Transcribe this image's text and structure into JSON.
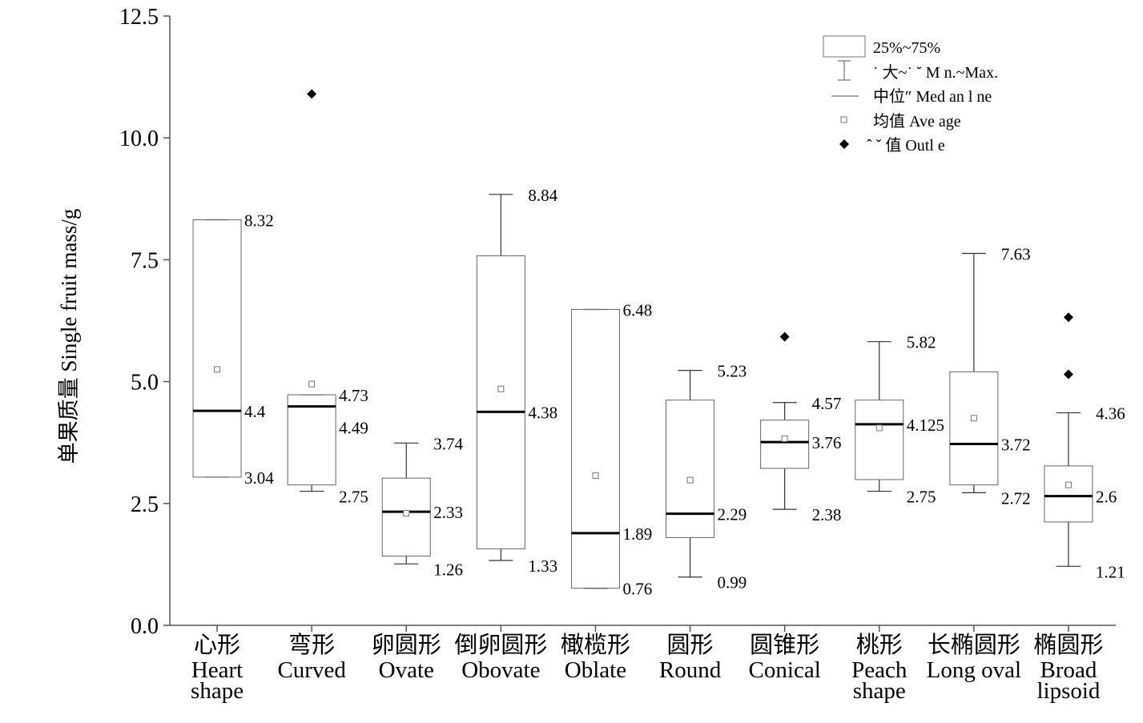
{
  "chart_data": {
    "type": "box",
    "ylabel": "单果质量 Single fruit mass/g",
    "ylim": [
      0,
      12.5
    ],
    "yticks": [
      "0.0",
      "2.5",
      "5.0",
      "7.5",
      "10.0",
      "12.5"
    ],
    "grid": false,
    "legend_position": "top-right",
    "legend": [
      "25%~75%",
      "˙ 大~˙ ˘ M n.~Max.",
      "中位″ Med an l ne",
      "均值 Ave age",
      "ˆ ˇ 值 Outl e"
    ],
    "categories": [
      {
        "cn": "心形",
        "en1": "Heart",
        "en2": "shape",
        "min": 3.04,
        "q1": 3.04,
        "median": 4.4,
        "q3": 8.32,
        "max": 8.32,
        "mean": 5.25,
        "outliers": [],
        "labels": {
          "max": "8.32",
          "median": "4.4",
          "min": "3.04"
        }
      },
      {
        "cn": "弯形",
        "en1": "Curved",
        "en2": "",
        "min": 2.75,
        "q1": 2.88,
        "median": 4.49,
        "q3": 4.73,
        "max": 4.73,
        "mean": 4.95,
        "outliers": [
          10.9
        ],
        "labels": {
          "max": "4.73",
          "median": "4.49",
          "min": "2.75"
        }
      },
      {
        "cn": "卵圆形",
        "en1": "Ovate",
        "en2": "",
        "min": 1.26,
        "q1": 1.42,
        "median": 2.33,
        "q3": 3.02,
        "max": 3.74,
        "mean": 2.3,
        "outliers": [],
        "labels": {
          "max": "3.74",
          "median": "2.33",
          "min": "1.26"
        }
      },
      {
        "cn": "倒卵圆形",
        "en1": "Obovate",
        "en2": "",
        "min": 1.33,
        "q1": 1.57,
        "median": 4.38,
        "q3": 7.58,
        "max": 8.84,
        "mean": 4.85,
        "outliers": [],
        "labels": {
          "max": "8.84",
          "median": "4.38",
          "min": "1.33"
        }
      },
      {
        "cn": "橄榄形",
        "en1": "Oblate",
        "en2": "",
        "min": 0.76,
        "q1": 0.76,
        "median": 1.89,
        "q3": 6.48,
        "max": 6.48,
        "mean": 3.07,
        "outliers": [],
        "labels": {
          "max": "6.48",
          "median": "1.89",
          "min": "0.76"
        }
      },
      {
        "cn": "圆形",
        "en1": "Round",
        "en2": "",
        "min": 0.99,
        "q1": 1.8,
        "median": 2.29,
        "q3": 4.62,
        "max": 5.23,
        "mean": 2.98,
        "outliers": [],
        "labels": {
          "max": "5.23",
          "median": "2.29",
          "min": "0.99"
        }
      },
      {
        "cn": "圆锥形",
        "en1": "Conical",
        "en2": "",
        "min": 2.38,
        "q1": 3.22,
        "median": 3.76,
        "q3": 4.21,
        "max": 4.57,
        "mean": 3.83,
        "outliers": [
          5.92
        ],
        "labels": {
          "max": "4.57",
          "median": "3.76",
          "min": "2.38"
        }
      },
      {
        "cn": "桃形",
        "en1": "Peach",
        "en2": "shape",
        "min": 2.75,
        "q1": 2.99,
        "median": 4.125,
        "q3": 4.62,
        "max": 5.82,
        "mean": 4.05,
        "outliers": [],
        "labels": {
          "max": "5.82",
          "median": "4.125",
          "min": "2.75"
        }
      },
      {
        "cn": "长椭圆形",
        "en1": "Long oval",
        "en2": "",
        "min": 2.72,
        "q1": 2.88,
        "median": 3.72,
        "q3": 5.2,
        "max": 7.63,
        "mean": 4.25,
        "outliers": [],
        "labels": {
          "max": "7.63",
          "median": "3.72",
          "min": "2.72"
        }
      },
      {
        "cn": "椭圆形",
        "en1": "Broad",
        "en2": "lipsoid",
        "min": 1.21,
        "q1": 2.12,
        "median": 2.65,
        "q3": 3.27,
        "max": 4.36,
        "mean": 2.88,
        "outliers": [
          5.15,
          6.32
        ],
        "labels": {
          "max": "4.36",
          "median": "2.6",
          "min": "1.21"
        }
      }
    ]
  }
}
